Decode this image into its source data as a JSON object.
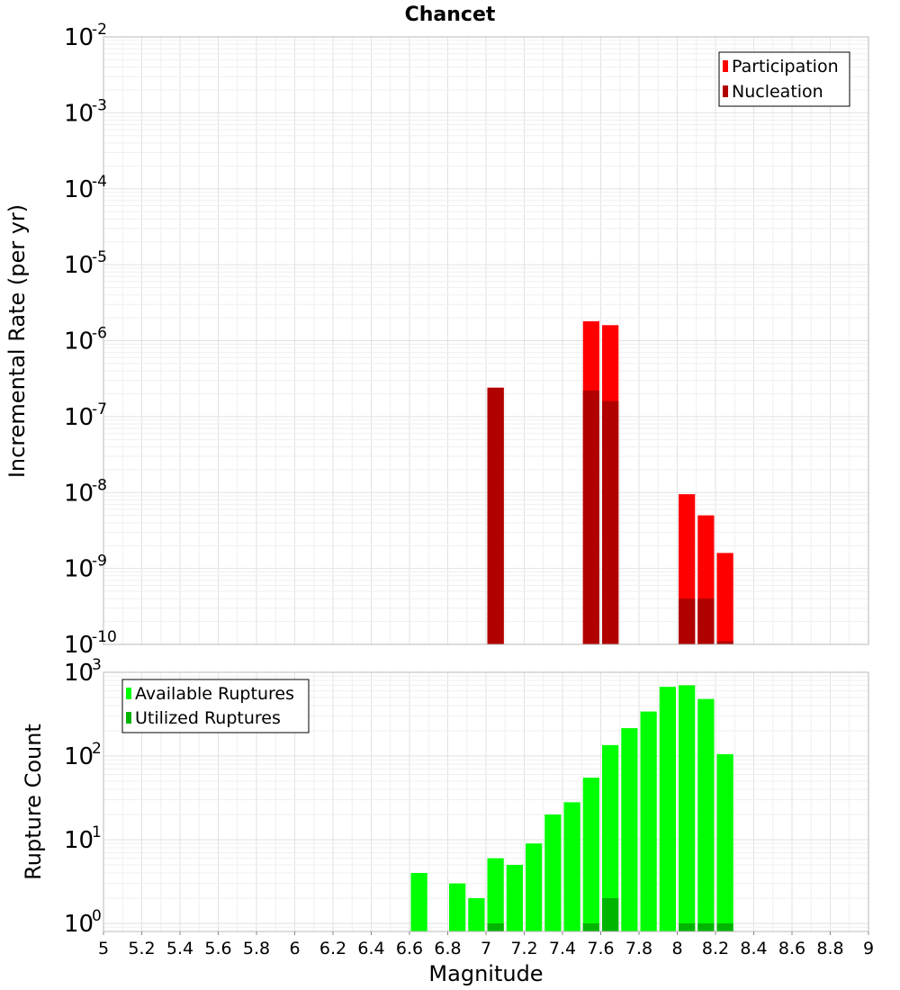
{
  "chart_data": [
    {
      "type": "bar",
      "title": "Chancet",
      "xlabel": "",
      "ylabel": "Incremental Rate (per yr)",
      "yscale": "log",
      "ylim": [
        1e-10,
        0.01
      ],
      "xlim": [
        5,
        9
      ],
      "grid": true,
      "legend_position": "top-right",
      "yticks": [
        {
          "base": "10",
          "exp": "-10"
        },
        {
          "base": "10",
          "exp": "-9"
        },
        {
          "base": "10",
          "exp": "-8"
        },
        {
          "base": "10",
          "exp": "-7"
        },
        {
          "base": "10",
          "exp": "-6"
        },
        {
          "base": "10",
          "exp": "-5"
        },
        {
          "base": "10",
          "exp": "-4"
        },
        {
          "base": "10",
          "exp": "-3"
        },
        {
          "base": "10",
          "exp": "-2"
        }
      ],
      "series": [
        {
          "name": "Participation",
          "color": "#ff0000",
          "points": [
            {
              "x": 7.05,
              "y": 2.4e-07
            },
            {
              "x": 7.55,
              "y": 1.8e-06
            },
            {
              "x": 7.65,
              "y": 1.6e-06
            },
            {
              "x": 8.05,
              "y": 9.5e-09
            },
            {
              "x": 8.15,
              "y": 5e-09
            },
            {
              "x": 8.25,
              "y": 1.6e-09
            }
          ]
        },
        {
          "name": "Nucleation",
          "color": "#b00000",
          "points": [
            {
              "x": 7.05,
              "y": 2.4e-07
            },
            {
              "x": 7.55,
              "y": 2.2e-07
            },
            {
              "x": 7.65,
              "y": 1.6e-07
            },
            {
              "x": 8.05,
              "y": 4e-10
            },
            {
              "x": 8.15,
              "y": 4e-10
            },
            {
              "x": 8.25,
              "y": 1.1e-10
            }
          ]
        }
      ]
    },
    {
      "type": "bar",
      "title": "",
      "xlabel": "Magnitude",
      "ylabel": "Rupture Count",
      "yscale": "log",
      "ylim": [
        0.8,
        1000
      ],
      "xlim": [
        5,
        9
      ],
      "grid": true,
      "legend_position": "top-left",
      "xticks": [
        "5",
        "5.2",
        "5.4",
        "5.6",
        "5.8",
        "6",
        "6.2",
        "6.4",
        "6.6",
        "6.8",
        "7",
        "7.2",
        "7.4",
        "7.6",
        "7.8",
        "8",
        "8.2",
        "8.4",
        "8.6",
        "8.8",
        "9"
      ],
      "yticks": [
        {
          "base": "10",
          "exp": "0",
          "value": 1
        },
        {
          "base": "10",
          "exp": "1",
          "value": 10
        },
        {
          "base": "10",
          "exp": "2",
          "value": 100
        },
        {
          "base": "10",
          "exp": "3",
          "value": 1000
        }
      ],
      "series": [
        {
          "name": "Available Ruptures",
          "color": "#00ff00",
          "points": [
            {
              "x": 6.65,
              "y": 4
            },
            {
              "x": 6.85,
              "y": 3
            },
            {
              "x": 6.95,
              "y": 2
            },
            {
              "x": 7.05,
              "y": 6
            },
            {
              "x": 7.15,
              "y": 5
            },
            {
              "x": 7.25,
              "y": 9
            },
            {
              "x": 7.35,
              "y": 20
            },
            {
              "x": 7.45,
              "y": 28
            },
            {
              "x": 7.55,
              "y": 55
            },
            {
              "x": 7.65,
              "y": 135
            },
            {
              "x": 7.75,
              "y": 215
            },
            {
              "x": 7.85,
              "y": 340
            },
            {
              "x": 7.95,
              "y": 670
            },
            {
              "x": 8.05,
              "y": 700
            },
            {
              "x": 8.15,
              "y": 480
            },
            {
              "x": 8.25,
              "y": 105
            }
          ]
        },
        {
          "name": "Utilized Ruptures",
          "color": "#00b400",
          "points": [
            {
              "x": 7.05,
              "y": 1
            },
            {
              "x": 7.55,
              "y": 1
            },
            {
              "x": 7.65,
              "y": 2
            },
            {
              "x": 8.05,
              "y": 1
            },
            {
              "x": 8.15,
              "y": 1
            },
            {
              "x": 8.25,
              "y": 1
            }
          ]
        }
      ]
    }
  ]
}
